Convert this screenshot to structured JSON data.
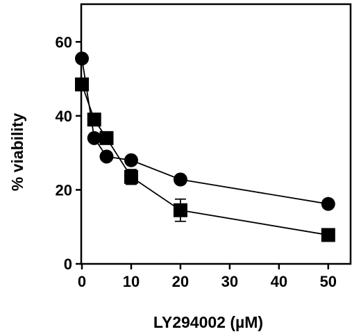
{
  "chart_data": {
    "type": "scatter",
    "title": "",
    "xlabel": "LY294002 (µM)",
    "ylabel": "% viability",
    "xlim": [
      0,
      52
    ],
    "ylim": [
      0,
      70
    ],
    "x_ticks": [
      0,
      10,
      20,
      30,
      40,
      50
    ],
    "y_ticks": [
      0,
      20,
      40,
      60
    ],
    "grid": false,
    "lines_connect_points": true,
    "series": [
      {
        "marker": "circle",
        "color": "#000000",
        "x": [
          0,
          2.5,
          5,
          10,
          20,
          50
        ],
        "y": [
          55.5,
          34,
          29,
          28,
          22.8,
          16.2
        ],
        "error": [
          0,
          0,
          0,
          0,
          0,
          0
        ]
      },
      {
        "marker": "square",
        "color": "#000000",
        "x": [
          0,
          2.5,
          5,
          10,
          20,
          50
        ],
        "y": [
          48.5,
          39,
          34,
          23.5,
          14.5,
          7.8
        ],
        "error": [
          0,
          0,
          0,
          2,
          3,
          0
        ]
      }
    ]
  }
}
